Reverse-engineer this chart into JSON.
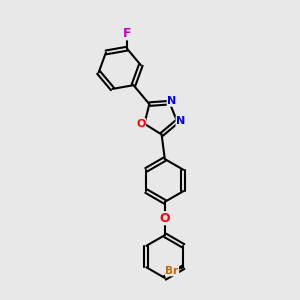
{
  "background_color": "#e8e8e8",
  "atom_colors": {
    "F": "#cc00cc",
    "O": "#ff0000",
    "N": "#0000ff",
    "Br": "#cc6600",
    "C": "#000000"
  },
  "bond_color": "#000000",
  "bond_width": 1.5,
  "font_size_atom": 8,
  "figsize": [
    3.0,
    3.0
  ],
  "dpi": 100
}
